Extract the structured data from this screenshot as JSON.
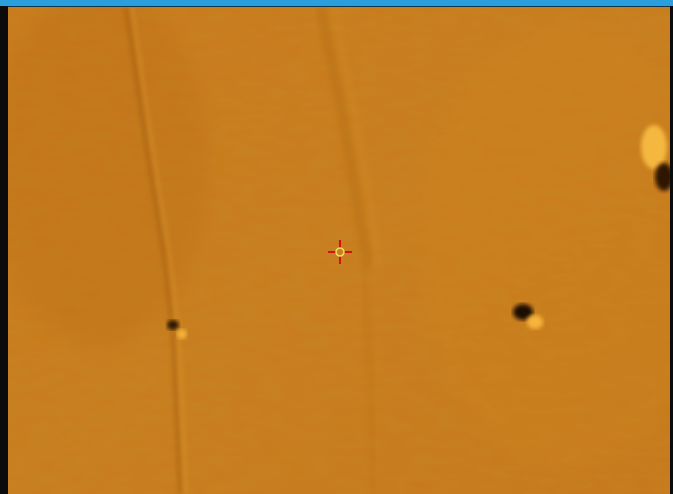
{
  "window": {
    "title_bar_color": "#2b9fdc"
  },
  "image_view": {
    "colormap": "copper",
    "base_color": "#c77a17",
    "cursor": "crosshair-icon"
  }
}
